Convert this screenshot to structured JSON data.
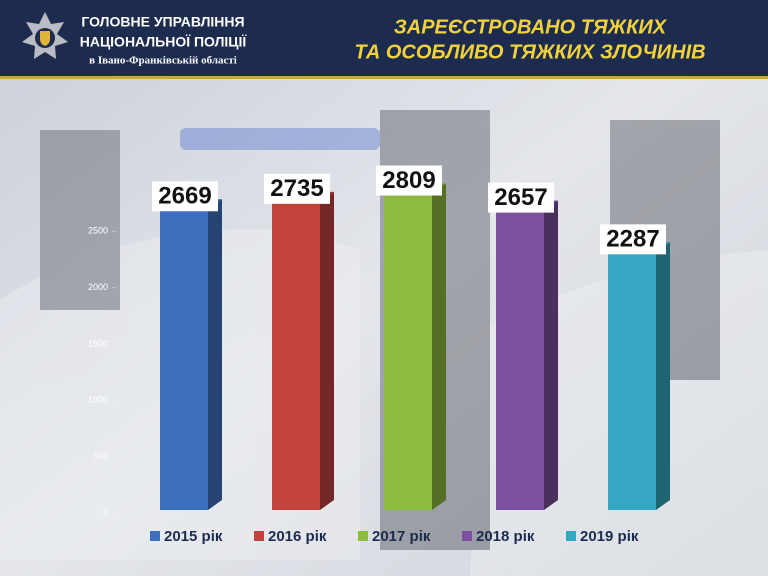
{
  "header": {
    "org": [
      "ГОЛОВНЕ УПРАВЛІННЯ",
      "НАЦІОНАЛЬНОЇ ПОЛІЦІЇ"
    ],
    "region": "в Івано-Франківській області"
  },
  "chart_data": {
    "type": "bar3d",
    "title": [
      "ЗАРЕЄСТРОВАНО ТЯЖКИХ",
      "ТА ОСОБЛИВО ТЯЖКИХ ЗЛОЧИНІВ"
    ],
    "categories": [
      "2015 рік",
      "2016 рік",
      "2017 рік",
      "2018 рік",
      "2019 рік"
    ],
    "values": [
      2669,
      2735,
      2809,
      2657,
      2287
    ],
    "colors": [
      "#3d6fbf",
      "#c2423e",
      "#8dbb3f",
      "#7b509f",
      "#36a7c2"
    ],
    "ylim": [
      0,
      3000
    ],
    "yticks": [
      0,
      500,
      1000,
      1500,
      2000,
      2500
    ]
  }
}
